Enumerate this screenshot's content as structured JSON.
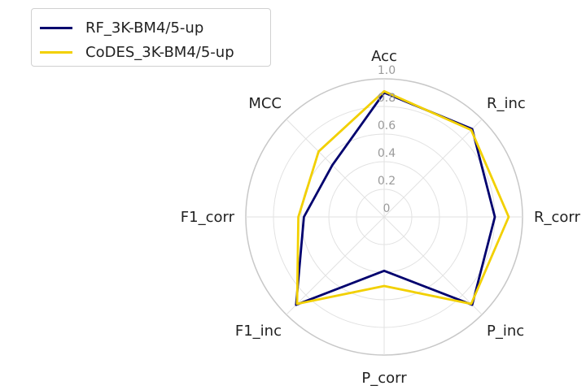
{
  "chart_data": {
    "type": "radar",
    "axes": [
      "Acc",
      "R_inc",
      "R_corr",
      "P_inc",
      "P_corr",
      "F1_inc",
      "F1_corr",
      "MCC"
    ],
    "rlim": [
      0,
      1.0
    ],
    "rticks": [
      "0",
      "0.2",
      "0.4",
      "0.6",
      "0.8",
      "1.0"
    ],
    "grid": true,
    "legend_position": "top-left",
    "series": [
      {
        "name": "RF_3K-BM4/5-up",
        "color": "#00006e",
        "values": [
          0.9,
          0.9,
          0.8,
          0.9,
          0.39,
          0.9,
          0.58,
          0.53
        ]
      },
      {
        "name": "CoDES_3K-BM4/5-up",
        "color": "#f2d000",
        "values": [
          0.91,
          0.89,
          0.9,
          0.89,
          0.5,
          0.89,
          0.62,
          0.67
        ]
      }
    ]
  }
}
